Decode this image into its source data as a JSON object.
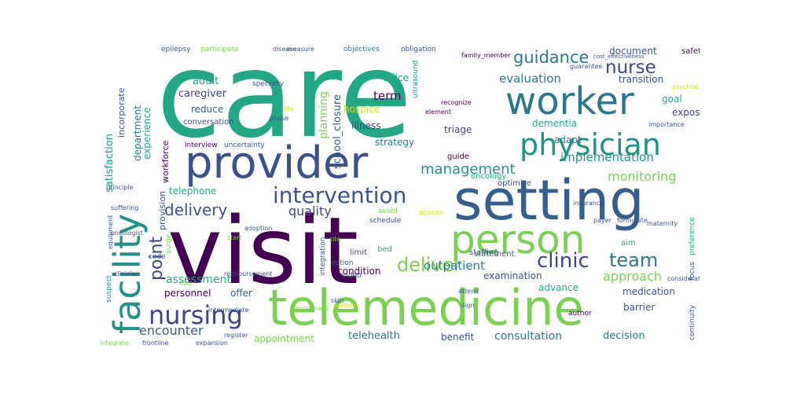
{
  "palette": {
    "purple": "#440154",
    "indigo": "#414487",
    "blue": "#355f8d",
    "teal": "#2a788e",
    "cyan": "#21918c",
    "green": "#22a884",
    "lime": "#7ad151",
    "yellow": "#d2e21b"
  },
  "words": [
    {
      "text": "care",
      "weight": 100,
      "color": "#22a884"
    },
    {
      "text": "visit",
      "weight": 80,
      "color": "#440154"
    },
    {
      "text": "setting",
      "weight": 62,
      "color": "#355f8d"
    },
    {
      "text": "telemedicine",
      "weight": 60,
      "color": "#7ad151"
    },
    {
      "text": "provider",
      "weight": 52,
      "color": "#3b528b"
    },
    {
      "text": "worker",
      "weight": 46,
      "color": "#2a788e"
    },
    {
      "text": "person",
      "weight": 46,
      "color": "#7ad151"
    },
    {
      "text": "facility",
      "weight": 44,
      "color": "#21918c"
    },
    {
      "text": "physician",
      "weight": 40,
      "color": "#21918c"
    },
    {
      "text": "nursing",
      "weight": 32,
      "color": "#414487"
    },
    {
      "text": "intervention",
      "weight": 28,
      "color": "#3b528b"
    },
    {
      "text": "clinic",
      "weight": 26,
      "color": "#414487"
    },
    {
      "text": "team",
      "weight": 24,
      "color": "#2a788e"
    },
    {
      "text": "deliver",
      "weight": 24,
      "color": "#7ad151"
    },
    {
      "text": "nurse",
      "weight": 22,
      "color": "#414487"
    },
    {
      "text": "guidance",
      "weight": 22,
      "color": "#2a788e"
    },
    {
      "text": "point",
      "weight": 22,
      "color": "#414487"
    },
    {
      "text": "delivery",
      "weight": 20,
      "color": "#3b528b"
    },
    {
      "text": "management",
      "weight": 18,
      "color": "#21918c"
    },
    {
      "text": "approach",
      "weight": 16,
      "color": "#7ad151"
    },
    {
      "text": "monitoring",
      "weight": 16,
      "color": "#7ad151"
    },
    {
      "text": "quality",
      "weight": 16,
      "color": "#414487"
    },
    {
      "text": "encounter",
      "weight": 16,
      "color": "#355f8d"
    },
    {
      "text": "outpatient",
      "weight": 15,
      "color": "#2a788e"
    },
    {
      "text": "implementation",
      "weight": 15,
      "color": "#21918c"
    },
    {
      "text": "evaluation",
      "weight": 15,
      "color": "#2a788e"
    },
    {
      "text": "term",
      "weight": 15,
      "color": "#440154"
    },
    {
      "text": "consultation",
      "weight": 14,
      "color": "#2a788e"
    },
    {
      "text": "planning",
      "weight": 14,
      "color": "#7ad151"
    },
    {
      "text": "assessment",
      "weight": 14,
      "color": "#22a884"
    },
    {
      "text": "telehealth",
      "weight": 13,
      "color": "#2a788e"
    },
    {
      "text": "decision",
      "weight": 13,
      "color": "#2a788e"
    },
    {
      "text": "school_closure",
      "weight": 13,
      "color": "#355f8d"
    },
    {
      "text": "satisfaction",
      "weight": 13,
      "color": "#21918c"
    },
    {
      "text": "adult",
      "weight": 13,
      "color": "#22a884"
    },
    {
      "text": "caregiver",
      "weight": 13,
      "color": "#414487"
    },
    {
      "text": "reduce",
      "weight": 12,
      "color": "#355f8d"
    },
    {
      "text": "hospice",
      "weight": 12,
      "color": "#d2e21b"
    },
    {
      "text": "illness",
      "weight": 12,
      "color": "#414487"
    },
    {
      "text": "triage",
      "weight": 12,
      "color": "#414487"
    },
    {
      "text": "strategy",
      "weight": 12,
      "color": "#2a788e"
    },
    {
      "text": "dementia",
      "weight": 12,
      "color": "#22a884"
    },
    {
      "text": "exposure",
      "weight": 12,
      "color": "#414487"
    },
    {
      "text": "adapt",
      "weight": 12,
      "color": "#2a788e"
    },
    {
      "text": "goal",
      "weight": 12,
      "color": "#22a884"
    },
    {
      "text": "transition",
      "weight": 12,
      "color": "#3b528b"
    },
    {
      "text": "document",
      "weight": 12,
      "color": "#3b528b"
    },
    {
      "text": "office",
      "weight": 12,
      "color": "#22a884"
    },
    {
      "text": "condition",
      "weight": 12,
      "color": "#440154"
    },
    {
      "text": "examination",
      "weight": 12,
      "color": "#3b528b"
    },
    {
      "text": "medication",
      "weight": 12,
      "color": "#3b528b"
    },
    {
      "text": "personnel",
      "weight": 12,
      "color": "#440154"
    },
    {
      "text": "offer",
      "weight": 12,
      "color": "#355f8d"
    },
    {
      "text": "advance",
      "weight": 12,
      "color": "#22a884"
    },
    {
      "text": "barrier",
      "weight": 12,
      "color": "#3b528b"
    },
    {
      "text": "appointment",
      "weight": 12,
      "color": "#7ad151"
    },
    {
      "text": "benefit",
      "weight": 12,
      "color": "#3b528b"
    },
    {
      "text": "telephone",
      "weight": 12,
      "color": "#22a884"
    },
    {
      "text": "department",
      "weight": 12,
      "color": "#2a788e"
    },
    {
      "text": "experience",
      "weight": 12,
      "color": "#22a884"
    },
    {
      "text": "incorporate",
      "weight": 11,
      "color": "#3b528b"
    },
    {
      "text": "workforce",
      "weight": 11,
      "color": "#440154"
    },
    {
      "text": "provision",
      "weight": 11,
      "color": "#3b528b"
    },
    {
      "text": "conversation",
      "weight": 10,
      "color": "#3b528b"
    },
    {
      "text": "guide",
      "weight": 10,
      "color": "#440154"
    },
    {
      "text": "oncology",
      "weight": 10,
      "color": "#22a884"
    },
    {
      "text": "optimize",
      "weight": 10,
      "color": "#3b528b"
    },
    {
      "text": "staffing",
      "weight": 10,
      "color": "#355f8d"
    },
    {
      "text": "statement",
      "weight": 10,
      "color": "#355f8d"
    },
    {
      "text": "safety",
      "weight": 10,
      "color": "#440154"
    },
    {
      "text": "aim",
      "weight": 10,
      "color": "#22a884"
    },
    {
      "text": "bed",
      "weight": 10,
      "color": "#22a884"
    },
    {
      "text": "limit",
      "weight": 10,
      "color": "#3b528b"
    },
    {
      "text": "schedule",
      "weight": 9,
      "color": "#3b528b"
    },
    {
      "text": "access",
      "weight": 9,
      "color": "#d2e21b"
    },
    {
      "text": "avoid",
      "weight": 9,
      "color": "#7ad151"
    },
    {
      "text": "video",
      "weight": 9,
      "color": "#3b528b"
    },
    {
      "text": "code",
      "weight": 9,
      "color": "#3b528b"
    },
    {
      "text": "surge",
      "weight": 9,
      "color": "#7ad151"
    },
    {
      "text": "suspect",
      "weight": 9,
      "color": "#21918c"
    },
    {
      "text": "option",
      "weight": 9,
      "color": "#3b528b"
    },
    {
      "text": "integration",
      "weight": 9,
      "color": "#3b528b"
    },
    {
      "text": "interview",
      "weight": 9,
      "color": "#440154"
    },
    {
      "text": "uncertainty",
      "weight": 9,
      "color": "#3b528b"
    },
    {
      "text": "specialty",
      "weight": 9,
      "color": "#3b528b"
    },
    {
      "text": "objectives",
      "weight": 9,
      "color": "#2a788e"
    },
    {
      "text": "obligation",
      "weight": 9,
      "color": "#3b528b"
    },
    {
      "text": "participate",
      "weight": 9,
      "color": "#7ad151"
    },
    {
      "text": "epilepsy",
      "weight": 9,
      "color": "#3b528b"
    },
    {
      "text": "continuity",
      "weight": 9,
      "color": "#3b528b"
    },
    {
      "text": "preference",
      "weight": 9,
      "color": "#22a884"
    },
    {
      "text": "focus",
      "weight": 9,
      "color": "#3b528b"
    },
    {
      "text": "ultrasound",
      "weight": 9,
      "color": "#21918c"
    },
    {
      "text": "author",
      "weight": 9,
      "color": "#440154"
    },
    {
      "text": "implement",
      "weight": 8,
      "color": "#7ad151"
    },
    {
      "text": "intermediate",
      "weight": 8,
      "color": "#3b528b"
    },
    {
      "text": "integrate",
      "weight": 8,
      "color": "#7ad151"
    },
    {
      "text": "frontline",
      "weight": 8,
      "color": "#3b528b"
    },
    {
      "text": "expansion",
      "weight": 8,
      "color": "#3b528b"
    },
    {
      "text": "register",
      "weight": 8,
      "color": "#3b528b"
    },
    {
      "text": "element",
      "weight": 8,
      "color": "#440154"
    },
    {
      "text": "recognize",
      "weight": 8,
      "color": "#440154"
    },
    {
      "text": "insurance",
      "weight": 8,
      "color": "#3b528b"
    },
    {
      "text": "importance",
      "weight": 8,
      "color": "#3b528b"
    },
    {
      "text": "psychiatry",
      "weight": 8,
      "color": "#d2e21b"
    },
    {
      "text": "equipment",
      "weight": 8,
      "color": "#3b528b"
    },
    {
      "text": "suffering",
      "weight": 8,
      "color": "#3b528b"
    },
    {
      "text": "oncologist",
      "weight": 8,
      "color": "#3b528b"
    },
    {
      "text": "clinician",
      "weight": 8,
      "color": "#3b528b"
    },
    {
      "text": "reimbursement",
      "weight": 8,
      "color": "#3b528b"
    },
    {
      "text": "adoption",
      "weight": 8,
      "color": "#3b528b"
    },
    {
      "text": "family_member",
      "weight": 8,
      "color": "#440154"
    },
    {
      "text": "guarantee",
      "weight": 8,
      "color": "#3b528b"
    },
    {
      "text": "cost_effectiveness",
      "weight": 8,
      "color": "#3b528b"
    },
    {
      "text": "maternity",
      "weight": 8,
      "color": "#3b528b"
    },
    {
      "text": "consideration",
      "weight": 8,
      "color": "#3b528b"
    },
    {
      "text": "principle",
      "weight": 8,
      "color": "#3b528b"
    },
    {
      "text": "payer",
      "weight": 8,
      "color": "#3b528b"
    },
    {
      "text": "formulate",
      "weight": 8,
      "color": "#3b528b"
    },
    {
      "text": "phase",
      "weight": 8,
      "color": "#3b528b"
    },
    {
      "text": "life",
      "weight": 8,
      "color": "#d2e21b"
    },
    {
      "text": "tool",
      "weight": 8,
      "color": "#7ad151"
    },
    {
      "text": "skin",
      "weight": 8,
      "color": "#3b528b"
    },
    {
      "text": "site",
      "weight": 8,
      "color": "#7ad151"
    },
    {
      "text": "disease",
      "weight": 8,
      "color": "#3b528b"
    },
    {
      "text": "measure",
      "weight": 8,
      "color": "#3b528b"
    },
    {
      "text": "update",
      "weight": 8,
      "color": "#d2e21b"
    },
    {
      "text": "attend",
      "weight": 8,
      "color": "#3b528b"
    },
    {
      "text": "start",
      "weight": 8,
      "color": "#7ad151"
    },
    {
      "text": "sign",
      "weight": 8,
      "color": "#3b528b"
    }
  ]
}
